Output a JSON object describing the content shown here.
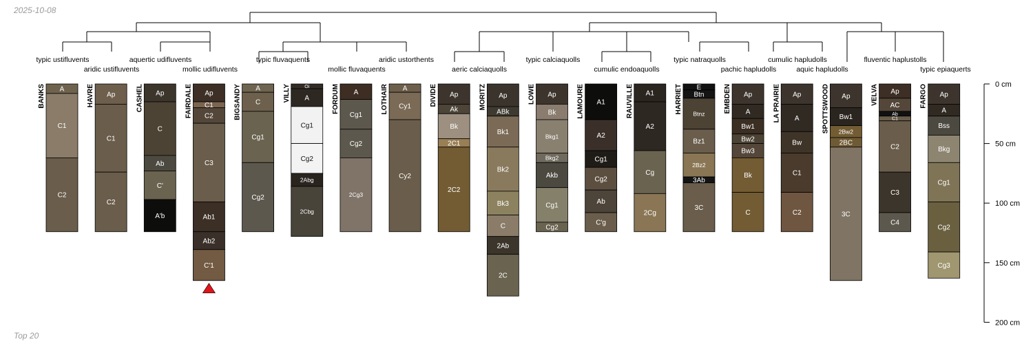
{
  "header": {
    "date": "2025-10-08"
  },
  "footer": {
    "label": "Top 20"
  },
  "chart_data": {
    "type": "soil-profile-sketch",
    "depth_axis": {
      "unit": "cm",
      "max": 200,
      "ticks": [
        {
          "depth": 0,
          "label": "0 cm"
        },
        {
          "depth": 50,
          "label": "50 cm"
        },
        {
          "depth": 100,
          "label": "100 cm"
        },
        {
          "depth": 150,
          "label": "150 cm"
        },
        {
          "depth": 200,
          "label": "200 cm"
        }
      ]
    },
    "truncation_marker": {
      "profile": "FAIRDALE",
      "color": "#e0151a"
    },
    "dendrogram": {
      "root": {
        "from": 6,
        "to": 17,
        "below": [
          [
            "leaf",
            0
          ],
          [
            "leaf",
            1
          ]
        ]
      },
      "top_merge": [
        {
          "from": 1.5,
          "to": 4.5,
          "parent": 6
        },
        {
          "from": 0,
          "to": 3,
          "parent": 1.5
        },
        {
          "from": 0,
          "to": 1,
          "parent": 0
        },
        {
          "from": 2,
          "to": 3,
          "parent": 3
        },
        {
          "from": 5.5,
          "to": 8,
          "parent": 4.5
        },
        {
          "from": 5,
          "to": 6,
          "parent": 5.5
        },
        {
          "from": 11,
          "to": 17.5,
          "parent": 17
        },
        {
          "from": 9,
          "to": 10.5,
          "parent": 11
        },
        {
          "from": 9.5,
          "to": 11.5,
          "parent": 10.5
        },
        {
          "from": 15,
          "to": 17.5,
          "parent": 17.5
        },
        {
          "from": 13,
          "to": 16,
          "parent": 15
        },
        {
          "from": 12,
          "to": 14,
          "parent": 13
        },
        {
          "from": 17,
          "to": 18,
          "parent": 17.5
        }
      ]
    },
    "taxa": [
      {
        "label": "typic ustifluvents",
        "pos": 1
      },
      {
        "label": "aridic ustifluvents",
        "pos": 2
      },
      {
        "label": "aquertic udifluvents",
        "pos": 1
      },
      {
        "label": "mollic udifluvents",
        "pos": 2
      },
      {
        "label": "typic fluvaquents",
        "pos": 1
      },
      {
        "label": "mollic fluvaquents",
        "pos": 2
      },
      {
        "label": "aridic ustorthents",
        "pos": 1
      },
      {
        "label": "aeric calciaquolls",
        "pos": 2
      },
      {
        "label": "typic calciaquolls",
        "pos": 1
      },
      {
        "label": "cumulic endoaquolls",
        "pos": 2
      },
      {
        "label": "typic natraquolls",
        "pos": 1
      },
      {
        "label": "pachic hapludolls",
        "pos": 2
      },
      {
        "label": "cumulic hapludolls",
        "pos": 1
      },
      {
        "label": "aquic hapludolls",
        "pos": 2
      },
      {
        "label": "fluventic haplustolls",
        "pos": 1
      },
      {
        "label": "typic epiaquerts",
        "pos": 2
      }
    ],
    "profiles": [
      {
        "name": "BANKS",
        "horizons": [
          {
            "name": "A",
            "top": 0,
            "bottom": 8,
            "color": "#6f634e"
          },
          {
            "name": "C1",
            "top": 8,
            "bottom": 62,
            "color": "#8a7c68"
          },
          {
            "name": "C2",
            "top": 62,
            "bottom": 124,
            "color": "#6a5d4b"
          }
        ]
      },
      {
        "name": "HAVRE",
        "horizons": [
          {
            "name": "Ap",
            "top": 0,
            "bottom": 17,
            "color": "#6d5f4c"
          },
          {
            "name": "C1",
            "top": 17,
            "bottom": 74,
            "color": "#6a5d4b"
          },
          {
            "name": "C2",
            "top": 74,
            "bottom": 124,
            "color": "#6a5d4b"
          }
        ]
      },
      {
        "name": "CASHEL",
        "horizons": [
          {
            "name": "Ap",
            "top": 0,
            "bottom": 15,
            "color": "#3c352c"
          },
          {
            "name": "C",
            "top": 15,
            "bottom": 60,
            "color": "#4d4334"
          },
          {
            "name": "Ab",
            "top": 60,
            "bottom": 73,
            "color": "#4c4a40"
          },
          {
            "name": "C'",
            "top": 73,
            "bottom": 97,
            "color": "#6a6350"
          },
          {
            "name": "A'b",
            "top": 97,
            "bottom": 124,
            "color": "#0d0d0b"
          }
        ]
      },
      {
        "name": "FAIRDALE",
        "horizons": [
          {
            "name": "Ap",
            "top": 0,
            "bottom": 15,
            "color": "#3d2f25"
          },
          {
            "name": "C1",
            "top": 15,
            "bottom": 20,
            "color": "#7b6450"
          },
          {
            "name": "C2",
            "top": 20,
            "bottom": 33,
            "color": "#54473a"
          },
          {
            "name": "C3",
            "top": 33,
            "bottom": 99,
            "color": "#6a5d4b"
          },
          {
            "name": "Ab1",
            "top": 99,
            "bottom": 124,
            "color": "#3c2f25"
          },
          {
            "name": "Ab2",
            "top": 124,
            "bottom": 139,
            "color": "#3a3029"
          },
          {
            "name": "C'1",
            "top": 139,
            "bottom": 165,
            "color": "#725a43"
          }
        ]
      },
      {
        "name": "BIGSANDY",
        "horizons": [
          {
            "name": "A",
            "top": 0,
            "bottom": 7,
            "color": "#6e6450"
          },
          {
            "name": "C",
            "top": 7,
            "bottom": 23,
            "color": "#6d604c"
          },
          {
            "name": "Cg1",
            "top": 23,
            "bottom": 66,
            "color": "#6a6350"
          },
          {
            "name": "Cg2",
            "top": 66,
            "bottom": 124,
            "color": "#5d584d"
          }
        ]
      },
      {
        "name": "VILLY",
        "horizons": [
          {
            "name": "Oi",
            "top": 0,
            "bottom": 4,
            "color": "#322c25"
          },
          {
            "name": "A",
            "top": 4,
            "bottom": 19,
            "color": "#2e2823"
          },
          {
            "name": "Cg1",
            "top": 19,
            "bottom": 50,
            "color": "#f2f2f2"
          },
          {
            "name": "Cg2",
            "top": 50,
            "bottom": 75,
            "color": "#f3f3f3"
          },
          {
            "name": "2Abg",
            "top": 75,
            "bottom": 86,
            "color": "#2a241f"
          },
          {
            "name": "2Cbg",
            "top": 86,
            "bottom": 128,
            "color": "#49443a"
          }
        ]
      },
      {
        "name": "FORDUM",
        "horizons": [
          {
            "name": "A",
            "top": 0,
            "bottom": 13,
            "color": "#3e2d22"
          },
          {
            "name": "Cg1",
            "top": 13,
            "bottom": 38,
            "color": "#5d584d"
          },
          {
            "name": "Cg2",
            "top": 38,
            "bottom": 62,
            "color": "#5d584d"
          },
          {
            "name": "2Cg3",
            "top": 62,
            "bottom": 124,
            "color": "#807468"
          }
        ]
      },
      {
        "name": "LOTHAIR",
        "horizons": [
          {
            "name": "A",
            "top": 0,
            "bottom": 7,
            "color": "#6d5f4c"
          },
          {
            "name": "Cy1",
            "top": 7,
            "bottom": 30,
            "color": "#7a6a56"
          },
          {
            "name": "Cy2",
            "top": 30,
            "bottom": 124,
            "color": "#6a5d4b"
          }
        ]
      },
      {
        "name": "DIVIDE",
        "horizons": [
          {
            "name": "Ap",
            "top": 0,
            "bottom": 17,
            "color": "#3d352d"
          },
          {
            "name": "Ak",
            "top": 17,
            "bottom": 25,
            "color": "#4c4538"
          },
          {
            "name": "Bk",
            "top": 25,
            "bottom": 46,
            "color": "#9d9080"
          },
          {
            "name": "2C1",
            "top": 46,
            "bottom": 53,
            "color": "#9a7f55"
          },
          {
            "name": "2C2",
            "top": 53,
            "bottom": 124,
            "color": "#735c33"
          }
        ]
      },
      {
        "name": "MORITZ",
        "horizons": [
          {
            "name": "Ap",
            "top": 0,
            "bottom": 19,
            "color": "#3b342c"
          },
          {
            "name": "ABk",
            "top": 19,
            "bottom": 27,
            "color": "#3f3a31"
          },
          {
            "name": "Bk1",
            "top": 27,
            "bottom": 53,
            "color": "#7a6a56"
          },
          {
            "name": "Bk2",
            "top": 53,
            "bottom": 90,
            "color": "#8a7a5d"
          },
          {
            "name": "Bk3",
            "top": 90,
            "bottom": 110,
            "color": "#8d825f"
          },
          {
            "name": "C",
            "top": 110,
            "bottom": 128,
            "color": "#8a7c68"
          },
          {
            "name": "2Ab",
            "top": 128,
            "bottom": 143,
            "color": "#3c352c"
          },
          {
            "name": "2C",
            "top": 143,
            "bottom": 178,
            "color": "#6a6350"
          }
        ]
      },
      {
        "name": "LOWE",
        "horizons": [
          {
            "name": "Ap",
            "top": 0,
            "bottom": 17,
            "color": "#3d352d"
          },
          {
            "name": "Bk",
            "top": 17,
            "bottom": 30,
            "color": "#8a7c6e"
          },
          {
            "name": "Bkg1",
            "top": 30,
            "bottom": 58,
            "color": "#8a8070"
          },
          {
            "name": "Bkg2",
            "top": 58,
            "bottom": 66,
            "color": "#6f6a5d"
          },
          {
            "name": "Akb",
            "top": 66,
            "bottom": 87,
            "color": "#4c4a40"
          },
          {
            "name": "Cg1",
            "top": 87,
            "bottom": 116,
            "color": "#85806a"
          },
          {
            "name": "Cg2",
            "top": 116,
            "bottom": 124,
            "color": "#6a6350"
          }
        ]
      },
      {
        "name": "LAMOURE",
        "horizons": [
          {
            "name": "A1",
            "top": 0,
            "bottom": 30,
            "color": "#0d0d0b"
          },
          {
            "name": "A2",
            "top": 30,
            "bottom": 56,
            "color": "#3a3029"
          },
          {
            "name": "Cg1",
            "top": 56,
            "bottom": 70,
            "color": "#1f1c18"
          },
          {
            "name": "Cg2",
            "top": 70,
            "bottom": 89,
            "color": "#5d4f3f"
          },
          {
            "name": "Ab",
            "top": 89,
            "bottom": 108,
            "color": "#4d443a"
          },
          {
            "name": "C'g",
            "top": 108,
            "bottom": 124,
            "color": "#6a5d4b"
          }
        ]
      },
      {
        "name": "RAUVILLE",
        "horizons": [
          {
            "name": "A1",
            "top": 0,
            "bottom": 15,
            "color": "#2b2520"
          },
          {
            "name": "A2",
            "top": 15,
            "bottom": 56,
            "color": "#2e2823"
          },
          {
            "name": "Cg",
            "top": 56,
            "bottom": 92,
            "color": "#6a6350"
          },
          {
            "name": "2Cg",
            "top": 92,
            "bottom": 124,
            "color": "#8a7654"
          }
        ]
      },
      {
        "name": "HARRIET",
        "horizons": [
          {
            "name": "E",
            "top": 0,
            "bottom": 5,
            "color": "#111111"
          },
          {
            "name": "Btn",
            "top": 5,
            "bottom": 12,
            "color": "#141414"
          },
          {
            "name": "Btnz",
            "top": 12,
            "bottom": 38,
            "color": "#4d4334"
          },
          {
            "name": "Bz1",
            "top": 38,
            "bottom": 58,
            "color": "#6a5d4b"
          },
          {
            "name": "2Bz2",
            "top": 58,
            "bottom": 78,
            "color": "#8a7654"
          },
          {
            "name": "3Ab",
            "top": 78,
            "bottom": 83,
            "color": "#141414"
          },
          {
            "name": "3C",
            "top": 83,
            "bottom": 124,
            "color": "#6a5d4b"
          }
        ]
      },
      {
        "name": "EMBDEN",
        "horizons": [
          {
            "name": "Ap",
            "top": 0,
            "bottom": 17,
            "color": "#3d352d"
          },
          {
            "name": "A",
            "top": 17,
            "bottom": 29,
            "color": "#302a23"
          },
          {
            "name": "Bw1",
            "top": 29,
            "bottom": 42,
            "color": "#3b2e22"
          },
          {
            "name": "Bw2",
            "top": 42,
            "bottom": 50,
            "color": "#4d4334"
          },
          {
            "name": "Bw3",
            "top": 50,
            "bottom": 62,
            "color": "#54473a"
          },
          {
            "name": "Bk",
            "top": 62,
            "bottom": 91,
            "color": "#735c33"
          },
          {
            "name": "C",
            "top": 91,
            "bottom": 124,
            "color": "#735c33"
          }
        ]
      },
      {
        "name": "LA PRAIRIE",
        "horizons": [
          {
            "name": "Ap",
            "top": 0,
            "bottom": 17,
            "color": "#3d352d"
          },
          {
            "name": "A",
            "top": 17,
            "bottom": 40,
            "color": "#302a23"
          },
          {
            "name": "Bw",
            "top": 40,
            "bottom": 58,
            "color": "#3f3428"
          },
          {
            "name": "C1",
            "top": 58,
            "bottom": 91,
            "color": "#4a3b2d"
          },
          {
            "name": "C2",
            "top": 91,
            "bottom": 124,
            "color": "#6f5640"
          }
        ]
      },
      {
        "name": "SPOTTSWOOD",
        "horizons": [
          {
            "name": "Ap",
            "top": 0,
            "bottom": 20,
            "color": "#3d352d"
          },
          {
            "name": "Bw1",
            "top": 20,
            "bottom": 35,
            "color": "#2b2520"
          },
          {
            "name": "2Bw2",
            "top": 35,
            "bottom": 45,
            "color": "#735c33"
          },
          {
            "name": "2BC",
            "top": 45,
            "bottom": 53,
            "color": "#6f5a36"
          },
          {
            "name": "3C",
            "top": 53,
            "bottom": 165,
            "color": "#807464"
          }
        ]
      },
      {
        "name": "VELVA",
        "horizons": [
          {
            "name": "Ap",
            "top": 0,
            "bottom": 12,
            "color": "#3d2f25"
          },
          {
            "name": "AC",
            "top": 12,
            "bottom": 23,
            "color": "#54473a"
          },
          {
            "name": "Ab",
            "top": 23,
            "bottom": 27,
            "color": "#111111"
          },
          {
            "name": "C1",
            "top": 27,
            "bottom": 31,
            "color": "#6a5d4b"
          },
          {
            "name": "C2",
            "top": 31,
            "bottom": 74,
            "color": "#6a5d4b"
          },
          {
            "name": "C3",
            "top": 74,
            "bottom": 108,
            "color": "#3c352c"
          },
          {
            "name": "C4",
            "top": 108,
            "bottom": 124,
            "color": "#5d584d"
          }
        ]
      },
      {
        "name": "FARGO",
        "horizons": [
          {
            "name": "Ap",
            "top": 0,
            "bottom": 17,
            "color": "#3d352d"
          },
          {
            "name": "A",
            "top": 17,
            "bottom": 27,
            "color": "#302a23"
          },
          {
            "name": "Bss",
            "top": 27,
            "bottom": 43,
            "color": "#4c4a40"
          },
          {
            "name": "Bkg",
            "top": 43,
            "bottom": 66,
            "color": "#8d8570"
          },
          {
            "name": "Cg1",
            "top": 66,
            "bottom": 99,
            "color": "#807456"
          },
          {
            "name": "Cg2",
            "top": 99,
            "bottom": 141,
            "color": "#6a6040"
          },
          {
            "name": "Cg3",
            "top": 141,
            "bottom": 163,
            "color": "#a09670"
          }
        ]
      }
    ]
  }
}
